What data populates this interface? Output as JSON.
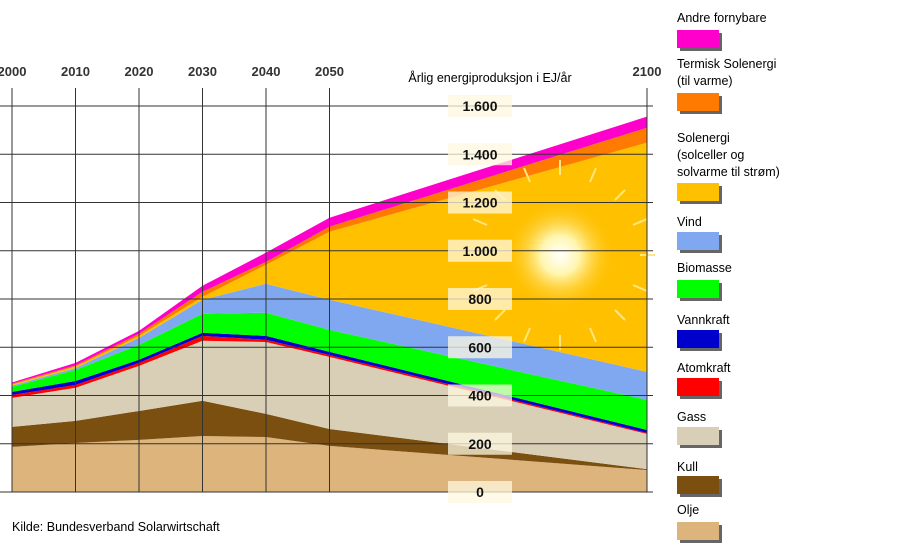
{
  "chart_data": {
    "type": "area",
    "stacked": true,
    "title": "Årlig energiproduksjon i EJ/år",
    "source": "Kilde: Bundesverband Solarwirtschaft",
    "x": [
      2000,
      2010,
      2020,
      2030,
      2040,
      2050,
      2100
    ],
    "xlim": [
      2000,
      2100
    ],
    "xticks": [
      2000,
      2010,
      2020,
      2030,
      2040,
      2050,
      2100
    ],
    "ylim": [
      0,
      1600
    ],
    "yticks": [
      0,
      200,
      400,
      600,
      800,
      {
        "value": 1000,
        "label": "1.000"
      },
      {
        "value": 1200,
        "label": "1.200"
      },
      {
        "value": 1400,
        "label": "1.400"
      },
      {
        "value": 1600,
        "label": "1.600"
      }
    ],
    "grid": true,
    "series": [
      {
        "name": "Olje",
        "color": "#dcb47c",
        "values": [
          187,
          203,
          216,
          232,
          228,
          191,
          91
        ]
      },
      {
        "name": "Kull",
        "color": "#7a4f10",
        "values": [
          83,
          92,
          120,
          146,
          96,
          70,
          4
        ]
      },
      {
        "name": "Gass",
        "color": "#d8cfb6",
        "values": [
          120,
          137,
          187,
          249,
          298,
          299,
          146
        ]
      },
      {
        "name": "Atomkraft",
        "color": "#ff0000",
        "values": [
          12,
          12,
          12,
          20,
          9,
          8,
          4
        ]
      },
      {
        "name": "Vannkraft",
        "color": "#0000cc",
        "values": [
          13,
          16,
          13,
          13,
          16,
          13,
          12
        ]
      },
      {
        "name": "Biomasse",
        "color": "#00ff00",
        "values": [
          21,
          46,
          62,
          79,
          96,
          91,
          125
        ]
      },
      {
        "name": "Vind",
        "color": "#80a8f0",
        "values": [
          5,
          8,
          29,
          58,
          120,
          125,
          116
        ]
      },
      {
        "name": "Solenergi\n(solceller og\nsolvarme til strøm)",
        "color": "#ffc000",
        "values": [
          4,
          6,
          8,
          12,
          79,
          282,
          950
        ]
      },
      {
        "name": "Termisk Solenergi\n(til varme)",
        "color": "#ff7a00",
        "values": [
          4,
          5,
          9,
          21,
          12,
          21,
          62
        ]
      },
      {
        "name": "Andre fornybare",
        "color": "#ff00cc",
        "values": [
          5,
          10,
          12,
          25,
          38,
          37,
          46
        ]
      }
    ]
  }
}
